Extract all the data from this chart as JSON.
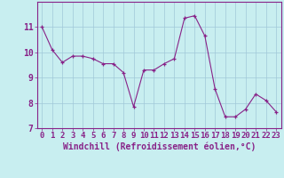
{
  "x": [
    0,
    1,
    2,
    3,
    4,
    5,
    6,
    7,
    8,
    9,
    10,
    11,
    12,
    13,
    14,
    15,
    16,
    17,
    18,
    19,
    20,
    21,
    22,
    23
  ],
  "y": [
    11.0,
    10.1,
    9.6,
    9.85,
    9.85,
    9.75,
    9.55,
    9.55,
    9.2,
    7.85,
    9.3,
    9.3,
    9.55,
    9.75,
    11.35,
    11.45,
    10.65,
    8.55,
    7.45,
    7.45,
    7.75,
    8.35,
    8.1,
    7.65
  ],
  "line_color": "#882288",
  "marker": "+",
  "marker_size": 3,
  "background_color": "#C8EEF0",
  "grid_color": "#A0C8D8",
  "xlabel": "Windchill (Refroidissement éolien,°C)",
  "ylim": [
    7,
    12
  ],
  "xlim": [
    -0.5,
    23.5
  ],
  "yticks": [
    7,
    8,
    9,
    10,
    11
  ],
  "xticks": [
    0,
    1,
    2,
    3,
    4,
    5,
    6,
    7,
    8,
    9,
    10,
    11,
    12,
    13,
    14,
    15,
    16,
    17,
    18,
    19,
    20,
    21,
    22,
    23
  ],
  "xlabel_fontsize": 7,
  "tick_fontsize": 6.5,
  "spine_color": "#882288",
  "xlabel_color": "#882288",
  "tick_color": "#882288",
  "separator_color": "#882288"
}
